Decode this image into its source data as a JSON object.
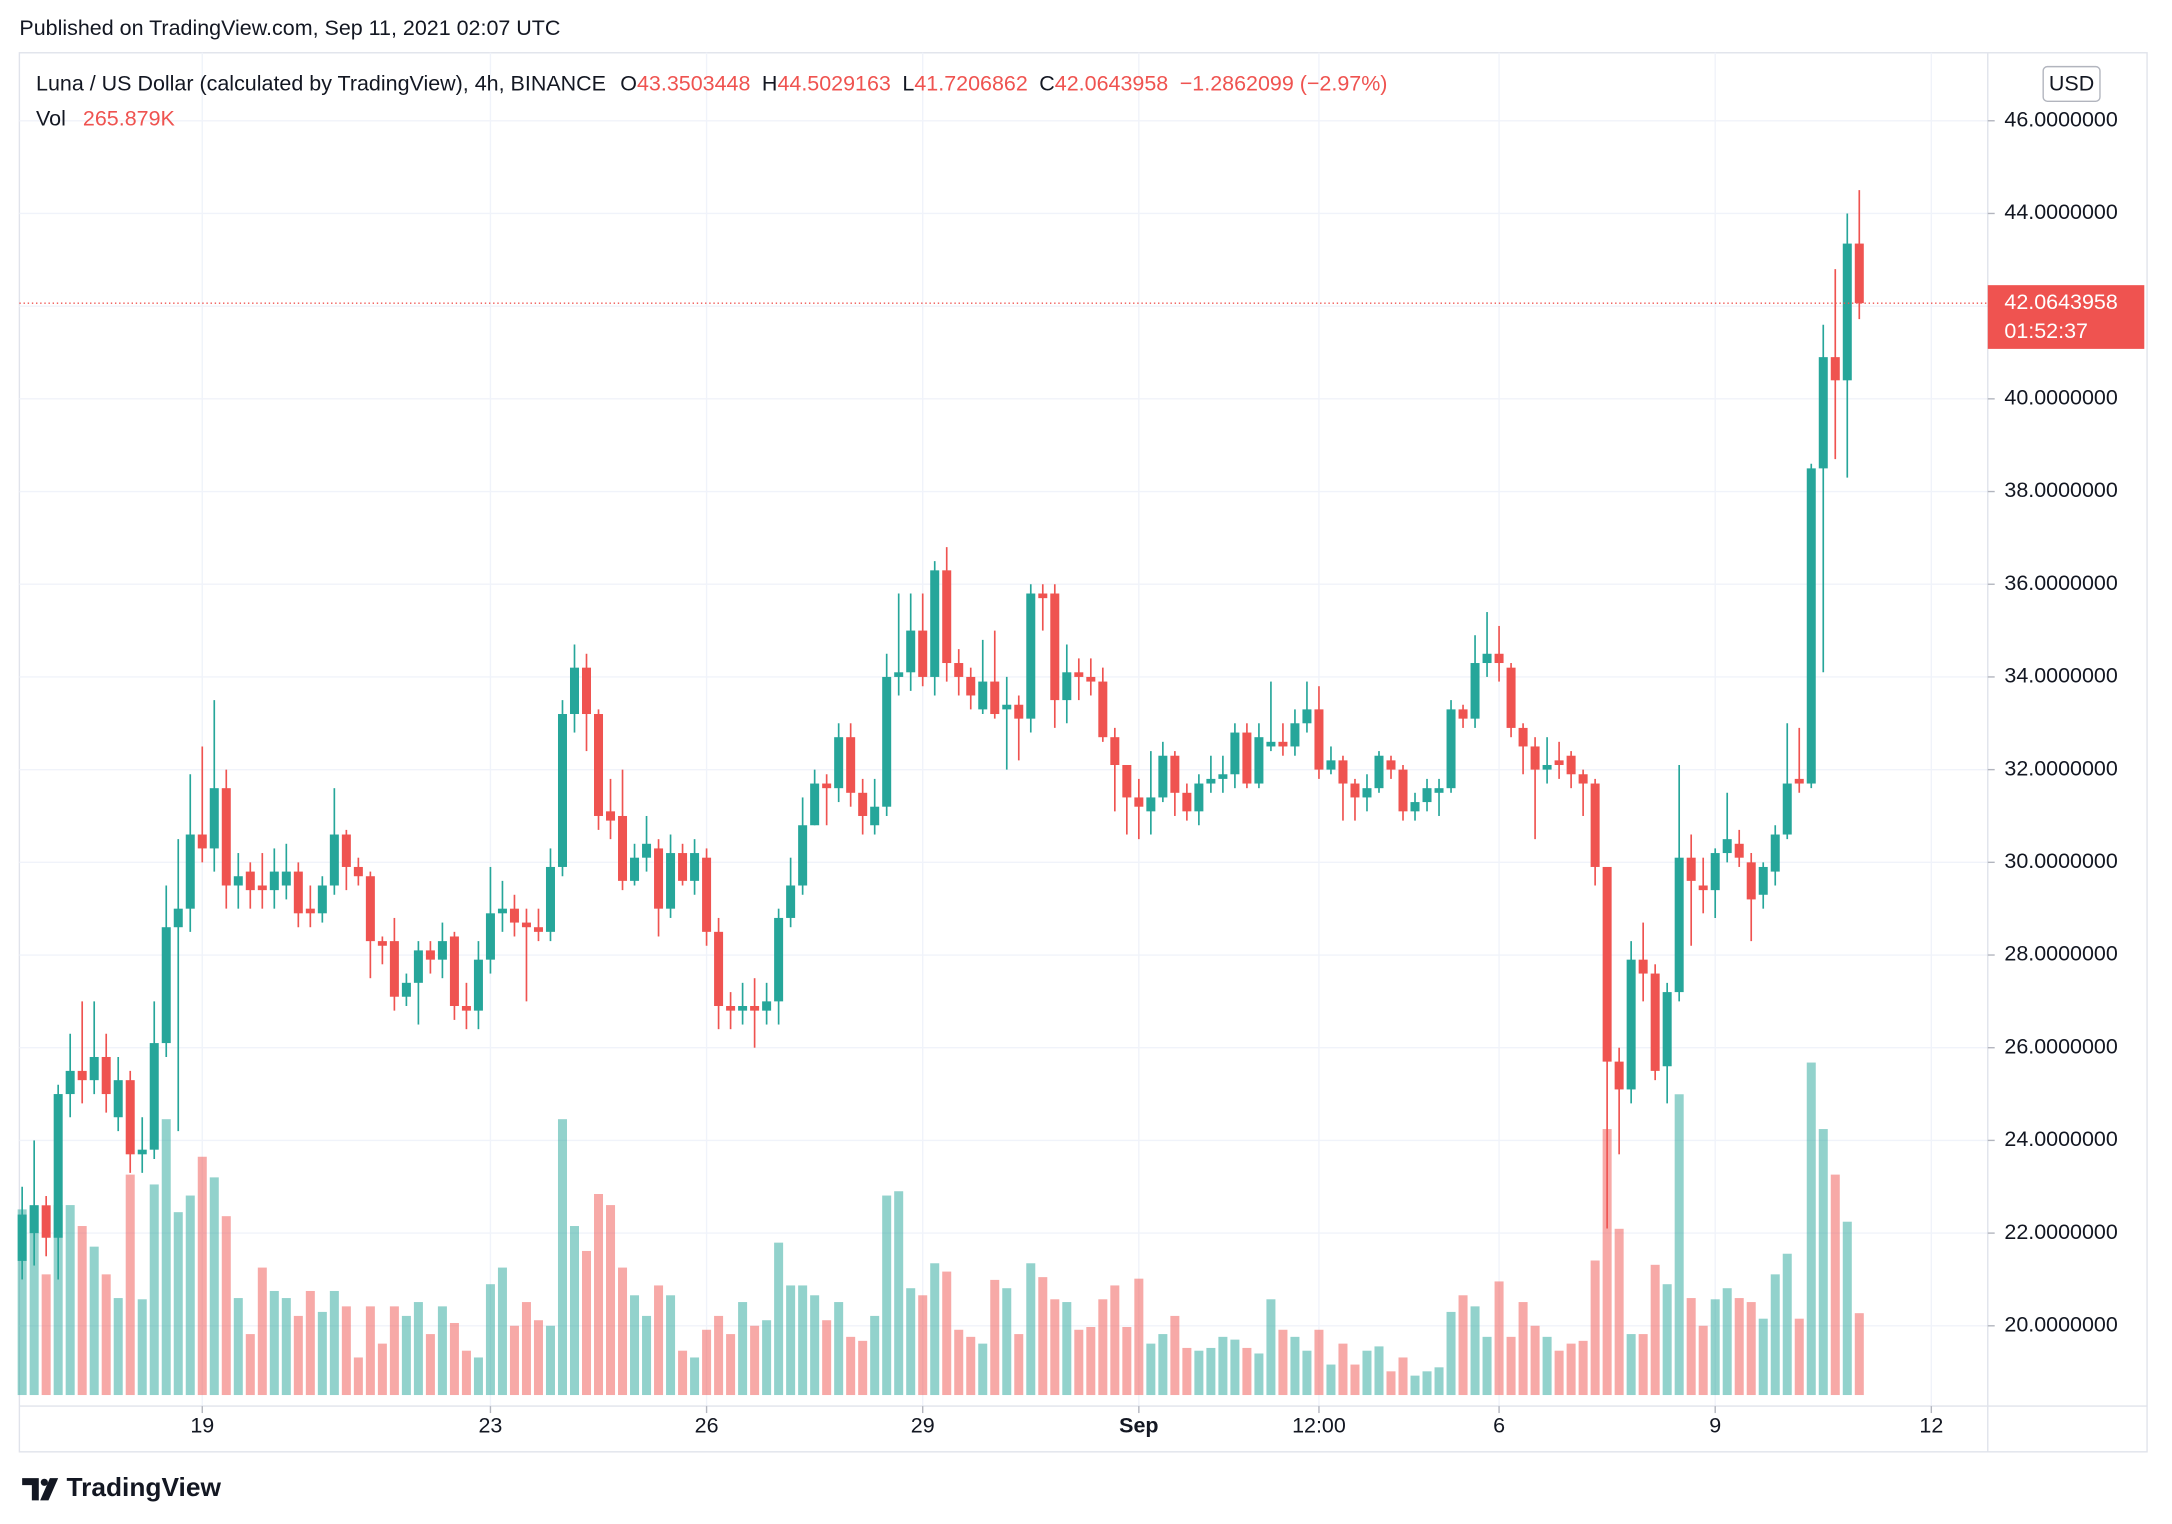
{
  "chart_data": {
    "type": "candlestick",
    "published": "Published on TradingView.com, Sep 11, 2021 02:07 UTC",
    "title": "Luna / US Dollar (calculated by TradingView), 4h, BINANCE",
    "ohlc_labels": [
      "O",
      "H",
      "L",
      "C"
    ],
    "change": "−1.2862099 (−2.97%)",
    "volume_title": "Vol",
    "last_volume_label": "265.879K",
    "currency": "USD",
    "countdown": "01:52:37",
    "brand": "TradingView",
    "up_color": "#26a69a",
    "down_color": "#ef5350",
    "grid": true,
    "open": [
      21.4,
      22.0,
      22.6,
      21.9,
      25.0,
      25.5,
      25.3,
      25.8,
      24.5,
      25.3,
      23.7,
      23.8,
      26.1,
      28.6,
      29.0,
      30.6,
      30.3,
      31.6,
      29.5,
      29.8,
      29.5,
      29.4,
      29.5,
      29.8,
      29.0,
      28.9,
      29.5,
      30.6,
      29.9,
      29.7,
      28.3,
      28.3,
      27.1,
      27.4,
      28.1,
      27.9,
      28.4,
      26.9,
      26.8,
      27.9,
      28.9,
      29.0,
      28.7,
      28.6,
      28.5,
      29.9,
      33.2,
      34.2,
      33.2,
      31.1,
      31.0,
      29.6,
      30.1,
      30.3,
      29.0,
      30.2,
      29.6,
      30.1,
      28.5,
      26.9,
      26.8,
      26.9,
      26.8,
      27.0,
      28.8,
      29.5,
      30.8,
      31.7,
      31.6,
      32.7,
      31.5,
      30.8,
      31.2,
      34.0,
      34.1,
      35.0,
      34.0,
      36.3,
      34.3,
      34.0,
      33.3,
      33.9,
      33.3,
      33.4,
      33.1,
      35.8,
      35.8,
      33.5,
      34.1,
      34.0,
      33.9,
      32.7,
      32.1,
      31.4,
      31.1,
      31.4,
      32.3,
      31.5,
      31.1,
      31.7,
      31.8,
      31.9,
      32.8,
      31.7,
      32.5,
      32.6,
      32.5,
      33.0,
      33.3,
      32.0,
      32.2,
      31.7,
      31.4,
      31.6,
      32.2,
      32.0,
      31.1,
      31.3,
      31.5,
      31.6,
      33.3,
      33.1,
      34.3,
      34.5,
      34.2,
      32.9,
      32.5,
      32.0,
      32.2,
      32.3,
      31.9,
      31.7,
      29.9,
      25.7,
      25.1,
      27.9,
      27.6,
      25.6,
      27.2,
      30.1,
      29.5,
      29.4,
      30.2,
      30.4,
      30.0,
      29.3,
      29.8,
      30.6,
      31.8,
      31.7,
      38.5,
      40.9,
      40.4,
      43.3503448
    ],
    "high": [
      23.0,
      24.0,
      22.8,
      25.2,
      26.3,
      27.0,
      27.0,
      26.3,
      25.8,
      25.5,
      24.5,
      27.0,
      29.5,
      30.5,
      31.9,
      32.5,
      33.5,
      32.0,
      30.2,
      30.0,
      30.2,
      30.3,
      30.4,
      30.0,
      29.5,
      29.7,
      31.6,
      30.7,
      30.1,
      29.8,
      28.4,
      28.8,
      27.6,
      28.3,
      28.3,
      28.7,
      28.5,
      27.4,
      28.3,
      29.9,
      29.6,
      29.3,
      29.0,
      29.0,
      30.3,
      33.5,
      34.7,
      34.5,
      33.3,
      31.8,
      32.0,
      30.4,
      31.0,
      30.5,
      30.6,
      30.4,
      30.5,
      30.3,
      28.8,
      27.2,
      27.4,
      27.5,
      27.4,
      29.0,
      30.1,
      31.4,
      32.0,
      31.9,
      33.0,
      33.0,
      31.8,
      31.8,
      34.5,
      35.8,
      35.8,
      35.8,
      36.5,
      36.8,
      34.6,
      34.2,
      34.8,
      35.0,
      34.0,
      33.6,
      36.0,
      36.0,
      36.0,
      34.7,
      34.4,
      34.4,
      34.2,
      32.9,
      32.1,
      31.8,
      32.4,
      32.6,
      32.4,
      31.7,
      31.9,
      32.3,
      32.3,
      33.0,
      33.0,
      33.0,
      33.9,
      33.0,
      33.3,
      33.9,
      33.8,
      32.5,
      32.3,
      31.8,
      31.9,
      32.4,
      32.3,
      32.1,
      31.5,
      31.8,
      31.8,
      33.5,
      33.4,
      34.9,
      35.4,
      35.1,
      34.3,
      33.0,
      32.7,
      32.7,
      32.6,
      32.4,
      32.0,
      31.8,
      29.9,
      26.0,
      28.3,
      28.7,
      27.8,
      27.4,
      32.1,
      30.6,
      30.1,
      30.3,
      31.5,
      30.7,
      30.2,
      30.0,
      30.8,
      33.0,
      32.9,
      38.6,
      41.6,
      42.8,
      44.0,
      44.5029163
    ],
    "low": [
      21.0,
      21.3,
      21.5,
      21.0,
      24.5,
      24.8,
      25.0,
      24.6,
      24.2,
      23.3,
      23.3,
      23.6,
      25.8,
      24.2,
      28.5,
      30.0,
      29.8,
      29.0,
      29.0,
      29.0,
      29.0,
      29.0,
      29.2,
      28.6,
      28.6,
      28.7,
      29.3,
      29.4,
      29.5,
      27.5,
      27.8,
      26.8,
      26.9,
      26.5,
      27.6,
      27.5,
      26.6,
      26.4,
      26.4,
      27.6,
      28.5,
      28.4,
      27.0,
      28.3,
      28.3,
      29.7,
      32.8,
      32.4,
      30.7,
      30.5,
      29.4,
      29.5,
      29.8,
      28.4,
      28.8,
      29.5,
      29.3,
      28.2,
      26.4,
      26.4,
      26.5,
      26.0,
      26.5,
      26.5,
      28.6,
      29.3,
      30.8,
      30.8,
      31.3,
      31.2,
      30.6,
      30.6,
      31.0,
      33.6,
      33.7,
      33.8,
      33.6,
      33.9,
      33.6,
      33.3,
      33.2,
      33.1,
      32.0,
      32.2,
      32.8,
      35.0,
      32.9,
      33.0,
      33.5,
      33.6,
      32.6,
      31.1,
      30.6,
      30.5,
      30.6,
      31.3,
      31.0,
      30.9,
      30.8,
      31.5,
      31.5,
      31.6,
      31.6,
      31.6,
      32.4,
      32.3,
      32.3,
      32.8,
      31.8,
      31.9,
      30.9,
      30.9,
      31.1,
      31.5,
      31.8,
      30.9,
      30.9,
      31.1,
      31.0,
      31.5,
      32.9,
      32.9,
      34.0,
      33.9,
      32.7,
      31.9,
      30.5,
      31.7,
      31.8,
      31.6,
      31.0,
      29.5,
      22.1,
      23.7,
      24.8,
      27.0,
      25.3,
      24.8,
      27.0,
      28.2,
      28.9,
      28.8,
      30.0,
      29.9,
      28.3,
      29.0,
      29.5,
      30.5,
      31.5,
      31.6,
      34.1,
      38.7,
      38.3,
      41.7206862
    ],
    "close": [
      22.4,
      22.6,
      21.9,
      25.0,
      25.5,
      25.3,
      25.8,
      25.0,
      25.3,
      23.7,
      23.8,
      26.1,
      28.6,
      29.0,
      30.6,
      30.3,
      31.6,
      29.5,
      29.7,
      29.4,
      29.4,
      29.8,
      29.8,
      28.9,
      28.9,
      29.5,
      30.6,
      29.9,
      29.7,
      28.3,
      28.2,
      27.1,
      27.4,
      28.1,
      27.9,
      28.3,
      26.9,
      26.8,
      27.9,
      28.9,
      29.0,
      28.7,
      28.6,
      28.5,
      29.9,
      33.2,
      34.2,
      33.2,
      31.0,
      30.9,
      29.6,
      30.1,
      30.4,
      29.0,
      30.2,
      29.6,
      30.2,
      28.5,
      26.9,
      26.8,
      26.9,
      26.8,
      27.0,
      28.8,
      29.5,
      30.8,
      31.7,
      31.6,
      32.7,
      31.5,
      31.0,
      31.2,
      34.0,
      34.1,
      35.0,
      34.0,
      36.3,
      34.3,
      34.0,
      33.6,
      33.9,
      33.2,
      33.4,
      33.1,
      35.8,
      35.7,
      33.5,
      34.1,
      34.0,
      33.9,
      32.7,
      32.1,
      31.4,
      31.2,
      31.4,
      32.3,
      31.5,
      31.1,
      31.7,
      31.8,
      31.9,
      32.8,
      31.7,
      32.7,
      32.6,
      32.5,
      33.0,
      33.3,
      32.0,
      32.2,
      31.7,
      31.4,
      31.6,
      32.3,
      32.0,
      31.1,
      31.3,
      31.6,
      31.6,
      33.3,
      33.1,
      34.3,
      34.5,
      34.3,
      32.9,
      32.5,
      32.0,
      32.1,
      32.1,
      31.9,
      31.7,
      29.9,
      25.7,
      25.1,
      27.9,
      27.6,
      25.5,
      27.2,
      30.1,
      29.6,
      29.4,
      30.2,
      30.5,
      30.1,
      29.2,
      29.9,
      30.6,
      31.7,
      31.7,
      38.5,
      40.9,
      40.4,
      43.35,
      42.0643958
    ],
    "volume": [
      603,
      617,
      392,
      617,
      617,
      549,
      482,
      392,
      315,
      716,
      311,
      684,
      896,
      594,
      648,
      774,
      707,
      581,
      315,
      198,
      414,
      338,
      315,
      257,
      338,
      270,
      338,
      288,
      122,
      288,
      167,
      288,
      257,
      302,
      198,
      288,
      234,
      144,
      122,
      360,
      414,
      225,
      302,
      243,
      225,
      896,
      549,
      468,
      653,
      617,
      414,
      324,
      257,
      356,
      324,
      144,
      122,
      212,
      257,
      198,
      302,
      225,
      243,
      495,
      356,
      356,
      324,
      243,
      302,
      189,
      176,
      257,
      648,
      662,
      347,
      324,
      428,
      401,
      212,
      189,
      167,
      374,
      347,
      198,
      428,
      383,
      311,
      302,
      212,
      221,
      311,
      356,
      221,
      378,
      167,
      198,
      257,
      153,
      144,
      153,
      189,
      180,
      153,
      135,
      311,
      212,
      189,
      144,
      212,
      99,
      167,
      99,
      144,
      158,
      77,
      122,
      63,
      77,
      90,
      270,
      324,
      288,
      189,
      369,
      189,
      302,
      225,
      189,
      144,
      167,
      176,
      437,
      864,
      540,
      198,
      198,
      423,
      360,
      977,
      315,
      225,
      311,
      347,
      315,
      302,
      248,
      392,
      459,
      248,
      1080,
      864,
      716,
      563,
      265.879
    ],
    "xlim": [
      -0.23,
      163.7
    ],
    "xticks": [
      {
        "value": 15,
        "label": "19"
      },
      {
        "value": 39,
        "label": "23"
      },
      {
        "value": 57,
        "label": "26"
      },
      {
        "value": 75,
        "label": "29"
      },
      {
        "value": 93,
        "label": "Sep"
      },
      {
        "value": 108,
        "label": "12:00"
      },
      {
        "value": 123,
        "label": "6"
      },
      {
        "value": 141,
        "label": "9"
      },
      {
        "value": 159,
        "label": "12"
      }
    ],
    "ylim": [
      18.267,
      47.467
    ],
    "yticks": [
      {
        "value": 20,
        "label": "20.0000000"
      },
      {
        "value": 22,
        "label": "22.0000000"
      },
      {
        "value": 24,
        "label": "24.0000000"
      },
      {
        "value": 26,
        "label": "26.0000000"
      },
      {
        "value": 28,
        "label": "28.0000000"
      },
      {
        "value": 30,
        "label": "30.0000000"
      },
      {
        "value": 32,
        "label": "32.0000000"
      },
      {
        "value": 34,
        "label": "34.0000000"
      },
      {
        "value": 36,
        "label": "36.0000000"
      },
      {
        "value": 38,
        "label": "38.0000000"
      },
      {
        "value": 40,
        "label": "40.0000000"
      },
      {
        "value": 42,
        "label": "42.0000000"
      },
      {
        "value": 44,
        "label": "44.0000000"
      },
      {
        "value": 46,
        "label": "46.0000000"
      }
    ],
    "y2lim": [
      -36,
      4360
    ]
  }
}
